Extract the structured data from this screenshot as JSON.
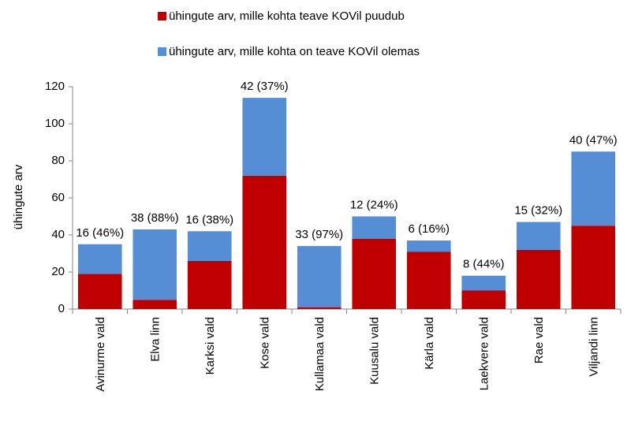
{
  "chart_data": {
    "type": "stacked_bar",
    "y_label": "ühingute arv",
    "categories": [
      "Avinurme vald",
      "Elva linn",
      "Karksi vald",
      "Kose vald",
      "Kullamaa vald",
      "Kuusalu vald",
      "Kärla vald",
      "Laekvere vald",
      "Rae vald",
      "Viljandi linn"
    ],
    "series": [
      {
        "name": "ühingute arv, mille kohta teave KOVil puudub",
        "color": "#c00000",
        "values": [
          19,
          5,
          26,
          72,
          1,
          38,
          31,
          10,
          32,
          45
        ]
      },
      {
        "name": "ühingute arv, mille kohta on teave KOVil olemas",
        "color": "#558ed5",
        "values": [
          16,
          38,
          16,
          42,
          33,
          12,
          6,
          8,
          15,
          40
        ],
        "value_labels": [
          "16 (46%)",
          "38 (88%)",
          "16 (38%)",
          "42 (37%)",
          "33 (97%)",
          "12 (24%)",
          "6 (16%)",
          "8 (44%)",
          "15 (32%)",
          "40 (47%)"
        ]
      }
    ],
    "ylim": [
      0,
      120
    ],
    "yticks": [
      0,
      20,
      40,
      60,
      80,
      100,
      120
    ],
    "grid": false,
    "legend": "top"
  }
}
